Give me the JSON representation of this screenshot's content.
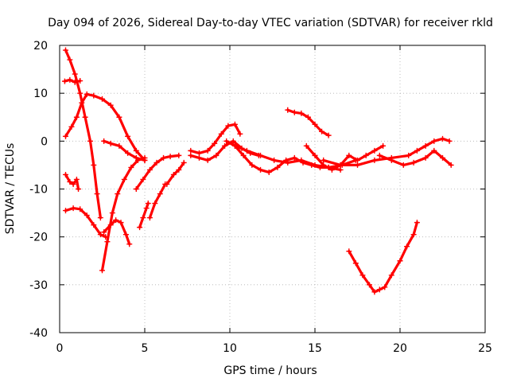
{
  "chart_data": {
    "type": "scatter",
    "title": "Day 094 of 2026, Sidereal Day-to-day VTEC variation (SDTVAR) for receiver rkld",
    "xlabel": "GPS time / hours",
    "ylabel": "SDTVAR / TECUs",
    "xlim": [
      0,
      25
    ],
    "ylim": [
      -40,
      20
    ],
    "xticks": [
      0,
      5,
      10,
      15,
      20,
      25
    ],
    "yticks": [
      20,
      10,
      0,
      -10,
      -20,
      -30,
      -40
    ],
    "grid": true,
    "marker": "plus",
    "color": "#ff0000",
    "series": [
      {
        "name": "track-1",
        "x": [
          0.35,
          0.6,
          0.9,
          1.2,
          1.5,
          1.8,
          2.0,
          2.2,
          2.4
        ],
        "y": [
          19,
          17,
          14,
          10,
          5,
          0,
          -5,
          -11,
          -16
        ]
      },
      {
        "name": "track-2",
        "x": [
          0.3,
          0.6,
          0.9,
          1.2
        ],
        "y": [
          12.5,
          12.8,
          12.3,
          12.6
        ]
      },
      {
        "name": "track-3",
        "x": [
          0.35,
          0.7,
          1.0,
          1.3,
          1.6,
          2.0,
          2.5,
          3.0,
          3.5,
          4.0,
          4.5,
          5.0
        ],
        "y": [
          1,
          3,
          5,
          8,
          9.8,
          9.5,
          8.8,
          7.5,
          5,
          1,
          -2,
          -4
        ]
      },
      {
        "name": "track-4",
        "x": [
          0.35,
          0.6,
          0.8,
          1.0,
          1.1
        ],
        "y": [
          -7,
          -8.5,
          -9,
          -8,
          -10
        ]
      },
      {
        "name": "track-5",
        "x": [
          0.35,
          0.8,
          1.2,
          1.6,
          2.0,
          2.4,
          2.7
        ],
        "y": [
          -14.5,
          -14,
          -14.2,
          -15.5,
          -17.5,
          -19.5,
          -20
        ]
      },
      {
        "name": "track-6",
        "x": [
          2.5,
          2.8,
          3.1,
          3.4,
          3.8,
          4.2,
          4.6,
          5.0
        ],
        "y": [
          -27,
          -21,
          -15,
          -11,
          -8,
          -5.5,
          -4,
          -3.5
        ]
      },
      {
        "name": "track-7",
        "x": [
          2.6,
          3.0,
          3.3,
          3.6,
          3.9,
          4.1
        ],
        "y": [
          -19,
          -17.5,
          -16.5,
          -17,
          -19.5,
          -21.5
        ]
      },
      {
        "name": "track-8",
        "x": [
          2.6,
          3.0,
          3.5,
          4.0,
          4.5,
          5.0
        ],
        "y": [
          0,
          -0.5,
          -1,
          -2.5,
          -3.5,
          -4
        ]
      },
      {
        "name": "track-9",
        "x": [
          4.5,
          4.9,
          5.3,
          5.7,
          6.1,
          6.5,
          7.0
        ],
        "y": [
          -10,
          -8,
          -6,
          -4.5,
          -3.5,
          -3.2,
          -3
        ]
      },
      {
        "name": "track-10",
        "x": [
          4.7,
          4.9,
          5.1,
          5.2
        ],
        "y": [
          -18,
          -16,
          -14,
          -13
        ]
      },
      {
        "name": "track-11",
        "x": [
          5.3,
          5.6,
          5.9,
          6.2
        ],
        "y": [
          -16,
          -13,
          -11,
          -9
        ]
      },
      {
        "name": "track-12",
        "x": [
          6.3,
          6.7,
          7.0,
          7.3
        ],
        "y": [
          -9,
          -7,
          -6,
          -4.5
        ]
      },
      {
        "name": "track-13",
        "x": [
          7.7,
          8.2,
          8.7,
          9.1,
          9.5,
          9.9,
          10.3,
          10.6
        ],
        "y": [
          -2,
          -2.5,
          -2,
          -0.5,
          1.5,
          3.2,
          3.5,
          1.5
        ]
      },
      {
        "name": "track-14",
        "x": [
          7.7,
          8.2,
          8.7,
          9.2,
          9.7,
          10.2,
          10.7,
          11.2,
          11.7
        ],
        "y": [
          -3,
          -3.5,
          -4,
          -3,
          -1,
          0,
          -1.5,
          -2.5,
          -3
        ]
      },
      {
        "name": "track-15",
        "x": [
          9.8,
          10.3,
          10.8,
          11.3,
          11.8,
          12.3,
          12.8,
          13.3,
          13.8,
          14.3,
          14.8,
          15.3,
          15.8,
          16.5
        ],
        "y": [
          0,
          -1,
          -3,
          -5,
          -6,
          -6.5,
          -5.5,
          -4,
          -3.5,
          -4.5,
          -5,
          -5.5,
          -5.5,
          -6
        ]
      },
      {
        "name": "track-16",
        "x": [
          10.3,
          11.0,
          11.8,
          12.6,
          13.4,
          14.2,
          15.0,
          15.8,
          16.6,
          17.4
        ],
        "y": [
          -1,
          -2,
          -3,
          -4,
          -4.5,
          -4,
          -5,
          -5.5,
          -5,
          -4
        ]
      },
      {
        "name": "track-17",
        "x": [
          13.4,
          13.8,
          14.2,
          14.6,
          15.0,
          15.4,
          15.8
        ],
        "y": [
          6.5,
          6,
          5.8,
          5,
          3.5,
          2,
          1.2
        ]
      },
      {
        "name": "track-18",
        "x": [
          14.5,
          15.0,
          15.5,
          16.0,
          16.5,
          17.0,
          17.5,
          18.0,
          18.5,
          19.0
        ],
        "y": [
          -1,
          -3,
          -5,
          -6,
          -5,
          -3,
          -4,
          -3,
          -2,
          -1
        ]
      },
      {
        "name": "track-19",
        "x": [
          15.5,
          16.5,
          17.5,
          18.5,
          19.5,
          20.5,
          21.0,
          21.5,
          22.0,
          22.5,
          22.9
        ],
        "y": [
          -4,
          -5,
          -5,
          -4,
          -3.5,
          -3,
          -2,
          -1,
          0,
          0.5,
          0
        ]
      },
      {
        "name": "track-20",
        "x": [
          18.8,
          19.5,
          20.2,
          20.8,
          21.5,
          22.0,
          22.5,
          23.0
        ],
        "y": [
          -3,
          -4,
          -5,
          -4.5,
          -3.5,
          -2,
          -3.5,
          -5
        ]
      },
      {
        "name": "track-21",
        "x": [
          17.0,
          17.4,
          17.8,
          18.2,
          18.5,
          18.8,
          19.1,
          19.5,
          20.0,
          20.4,
          20.8,
          21.0
        ],
        "y": [
          -23,
          -25.5,
          -28,
          -30,
          -31.5,
          -31,
          -30.5,
          -28,
          -25,
          -22,
          -19.5,
          -17
        ]
      }
    ]
  }
}
